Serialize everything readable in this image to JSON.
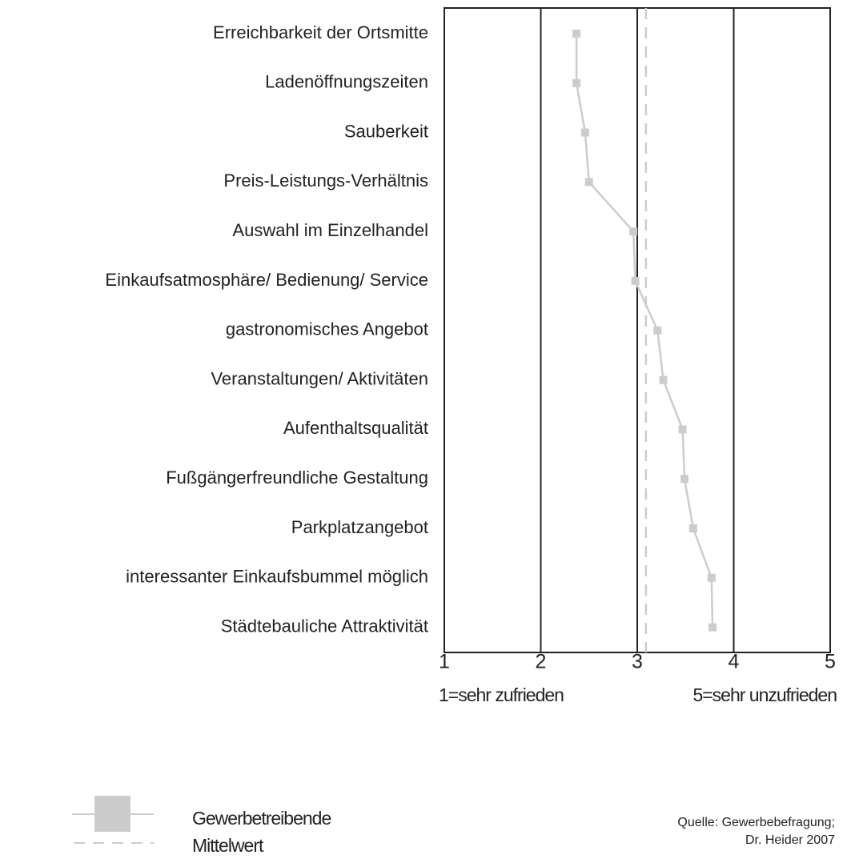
{
  "chart_data": {
    "type": "line",
    "orientation": "horizontal",
    "categories": [
      "Erreichbarkeit der Ortsmitte",
      "Ladenöffnungszeiten",
      "Sauberkeit",
      "Preis-Leistungs-Verhältnis",
      "Auswahl im Einzelhandel",
      "Einkaufsatmosphäre/ Bedienung/ Service",
      "gastronomisches Angebot",
      "Veranstaltungen/ Aktivitäten",
      "Aufenthaltsqualität",
      "Fußgängerfreundliche Gestaltung",
      "Parkplatzangebot",
      "interessanter Einkaufsbummel möglich",
      "Städtebauliche Attraktivität"
    ],
    "series": [
      {
        "name": "Gewerbetreibende",
        "color": "#cccccc",
        "values": [
          2.37,
          2.37,
          2.46,
          2.5,
          2.96,
          2.98,
          3.21,
          3.27,
          3.47,
          3.49,
          3.58,
          3.77,
          3.78
        ]
      }
    ],
    "mean": {
      "name": "Mittelwert",
      "value": 3.09,
      "color": "#cccccc"
    },
    "xlim": [
      1,
      5
    ],
    "xticks": [
      1,
      2,
      3,
      4,
      5
    ],
    "grid": true,
    "annotations": [
      "1=sehr zufrieden",
      "5=sehr unzufrieden"
    ],
    "source": [
      "Quelle: Gewerbebefragung;",
      "Dr. Heider 2007"
    ]
  }
}
